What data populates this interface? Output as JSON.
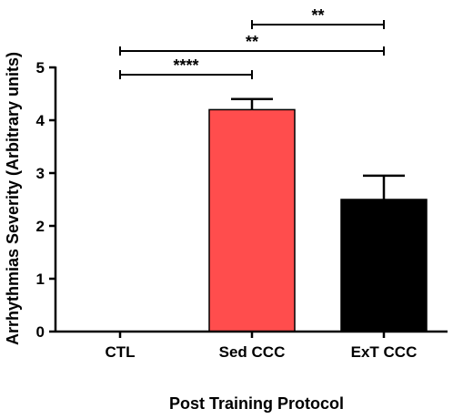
{
  "chart_data": {
    "type": "bar",
    "title": "",
    "xlabel": "Post Training Protocol",
    "ylabel": "Arrhythmias Severity  (Arbitrary units)",
    "ylim": [
      0,
      5
    ],
    "yticks": [
      "0",
      "1",
      "2",
      "3",
      "4",
      "5"
    ],
    "grid": false,
    "categories": [
      "CTL",
      "Sed CCC",
      "ExT CCC"
    ],
    "values": [
      0,
      4.2,
      2.5
    ],
    "errors": [
      0,
      0.2,
      0.45
    ],
    "colors": [
      "#ffffff",
      "#ff4d4d",
      "#000000"
    ],
    "significance": [
      {
        "from": "CTL",
        "to": "Sed CCC",
        "label": "****"
      },
      {
        "from": "CTL",
        "to": "ExT CCC",
        "label": "**"
      },
      {
        "from": "Sed CCC",
        "to": "ExT CCC",
        "label": "**"
      }
    ]
  }
}
